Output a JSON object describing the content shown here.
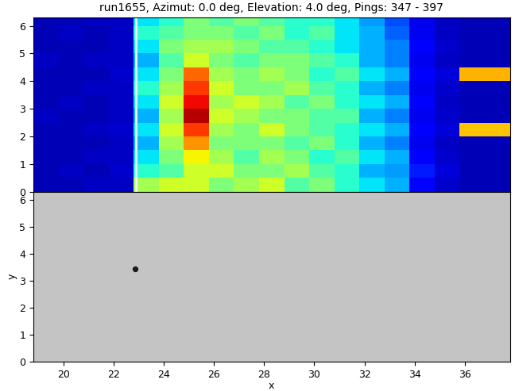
{
  "chart_data": [
    {
      "type": "heatmap",
      "title": "run1655, Azimut: 0.0 deg, Elevation: 4.0 deg, Pings: 347 - 397",
      "x_edges": [
        18.8,
        19.8,
        20.8,
        21.8,
        22.8,
        23.8,
        24.8,
        25.8,
        26.8,
        27.8,
        28.8,
        29.8,
        30.8,
        31.8,
        32.8,
        33.8,
        34.8,
        35.8,
        36.8,
        37.8
      ],
      "y_edges": [
        0,
        0.5,
        1,
        1.5,
        2,
        2.5,
        3,
        3.5,
        4,
        4.5,
        5,
        5.5,
        6,
        6.5
      ],
      "cells": [
        [
          0.05,
          0.05,
          0.06,
          0.06,
          0.55,
          0.6,
          0.6,
          0.5,
          0.55,
          0.6,
          0.45,
          0.5,
          0.4,
          0.35,
          0.3,
          0.12,
          0.07,
          0.05,
          0.05
        ],
        [
          0.05,
          0.06,
          0.05,
          0.07,
          0.4,
          0.45,
          0.6,
          0.6,
          0.5,
          0.5,
          0.55,
          0.45,
          0.4,
          0.3,
          0.28,
          0.15,
          0.08,
          0.05,
          0.05
        ],
        [
          0.05,
          0.05,
          0.06,
          0.06,
          0.35,
          0.5,
          0.65,
          0.55,
          0.45,
          0.55,
          0.5,
          0.4,
          0.45,
          0.35,
          0.3,
          0.12,
          0.07,
          0.05,
          0.05
        ],
        [
          0.05,
          0.05,
          0.05,
          0.06,
          0.3,
          0.55,
          0.75,
          0.5,
          0.5,
          0.5,
          0.45,
          0.5,
          0.4,
          0.3,
          0.25,
          0.1,
          0.06,
          0.05,
          0.05
        ],
        [
          0.05,
          0.05,
          0.06,
          0.07,
          0.35,
          0.6,
          0.85,
          0.55,
          0.5,
          0.6,
          0.5,
          0.45,
          0.4,
          0.35,
          0.3,
          0.12,
          0.08,
          0.7,
          0.7
        ],
        [
          0.06,
          0.05,
          0.05,
          0.06,
          0.3,
          0.55,
          0.95,
          0.6,
          0.55,
          0.5,
          0.5,
          0.45,
          0.45,
          0.3,
          0.25,
          0.1,
          0.07,
          0.05,
          0.05
        ],
        [
          0.05,
          0.06,
          0.05,
          0.06,
          0.35,
          0.6,
          0.9,
          0.55,
          0.6,
          0.55,
          0.45,
          0.5,
          0.4,
          0.35,
          0.3,
          0.12,
          0.06,
          0.05,
          0.05
        ],
        [
          0.05,
          0.05,
          0.06,
          0.06,
          0.4,
          0.55,
          0.85,
          0.6,
          0.5,
          0.5,
          0.55,
          0.45,
          0.4,
          0.3,
          0.25,
          0.1,
          0.07,
          0.05,
          0.05
        ],
        [
          0.05,
          0.05,
          0.05,
          0.07,
          0.35,
          0.5,
          0.8,
          0.55,
          0.5,
          0.55,
          0.5,
          0.4,
          0.45,
          0.35,
          0.3,
          0.12,
          0.08,
          0.72,
          0.72
        ],
        [
          0.06,
          0.05,
          0.06,
          0.06,
          0.3,
          0.45,
          0.6,
          0.5,
          0.45,
          0.5,
          0.5,
          0.45,
          0.4,
          0.3,
          0.25,
          0.1,
          0.06,
          0.05,
          0.05
        ],
        [
          0.05,
          0.05,
          0.05,
          0.06,
          0.35,
          0.5,
          0.55,
          0.55,
          0.5,
          0.45,
          0.45,
          0.4,
          0.35,
          0.3,
          0.25,
          0.12,
          0.07,
          0.05,
          0.05
        ],
        [
          0.05,
          0.06,
          0.05,
          0.06,
          0.4,
          0.45,
          0.5,
          0.5,
          0.45,
          0.5,
          0.4,
          0.45,
          0.35,
          0.3,
          0.22,
          0.1,
          0.06,
          0.05,
          0.05
        ],
        [
          0.05,
          0.05,
          0.06,
          0.06,
          0.35,
          0.4,
          0.5,
          0.45,
          0.5,
          0.45,
          0.4,
          0.4,
          0.35,
          0.28,
          0.2,
          0.1,
          0.06,
          0.05,
          0.05
        ]
      ],
      "clim": [
        0,
        1
      ],
      "line_x": 22.9,
      "xlim": [
        18.8,
        37.8
      ],
      "xticks": [
        20,
        22,
        24,
        26,
        28,
        30,
        32,
        34,
        36
      ],
      "ylim": [
        0,
        6.3
      ],
      "yticks": [
        0,
        1,
        2,
        3,
        4,
        5,
        6
      ],
      "tick_labels": "y"
    },
    {
      "type": "scatter",
      "x_label": "x",
      "y_label": "y",
      "x": [
        22.85
      ],
      "y": [
        3.45
      ],
      "color": "#1a1a1a",
      "xlim": [
        18.8,
        37.8
      ],
      "xticks": [
        20,
        22,
        24,
        26,
        28,
        30,
        32,
        34,
        36
      ],
      "ylim": [
        0,
        6.3
      ],
      "yticks": [
        0,
        1,
        2,
        3,
        4,
        5,
        6
      ]
    }
  ]
}
